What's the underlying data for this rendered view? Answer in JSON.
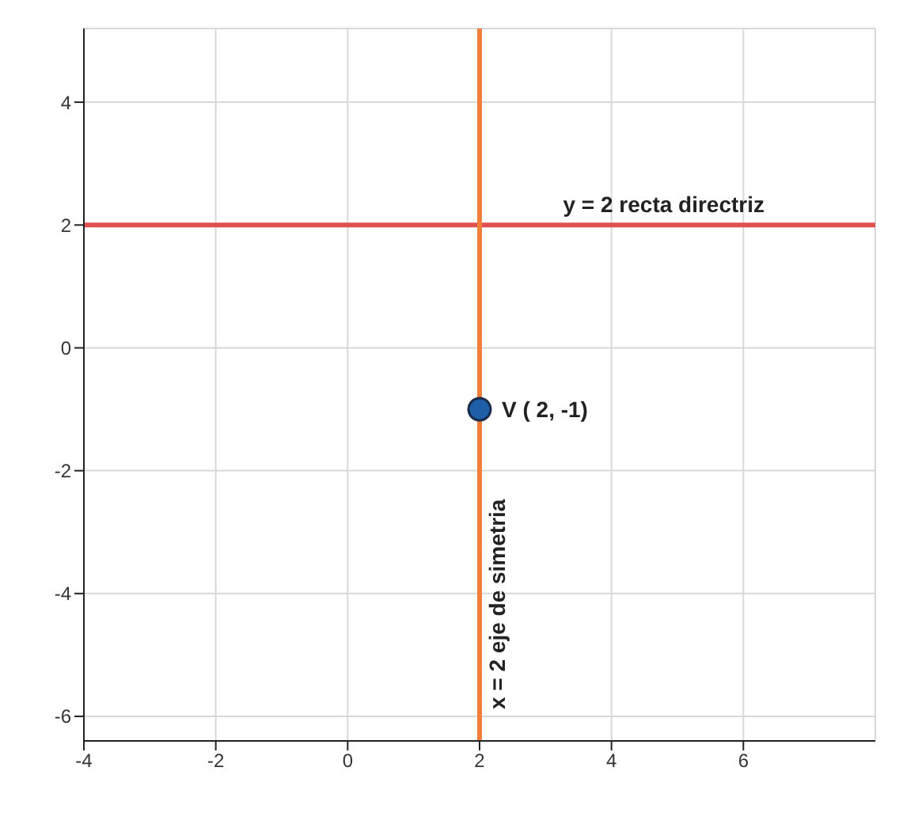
{
  "chart_data": {
    "type": "scatter",
    "x": [
      2
    ],
    "series": [
      {
        "color": "#1f5fa8",
        "values": [
          -1
        ]
      }
    ],
    "marker": "circle",
    "xlim": [
      -4,
      8
    ],
    "xticks": [
      -4,
      -2,
      0,
      2,
      4,
      6
    ],
    "ylim": [
      -6.4,
      5.2
    ],
    "yticks": [
      -6,
      -4,
      -2,
      0,
      2,
      4
    ],
    "grid": true,
    "ref_lines": [
      {
        "axis": "y",
        "value": 2,
        "label": "y = 2 recta directriz",
        "color": "#e0504f"
      },
      {
        "axis": "x",
        "value": 2,
        "label": "x = 2 eje de simetria",
        "color": "#f07f3c"
      }
    ],
    "annotations": [
      {
        "text": "V ( 2, -1)",
        "x": 2,
        "y": -1
      }
    ]
  }
}
